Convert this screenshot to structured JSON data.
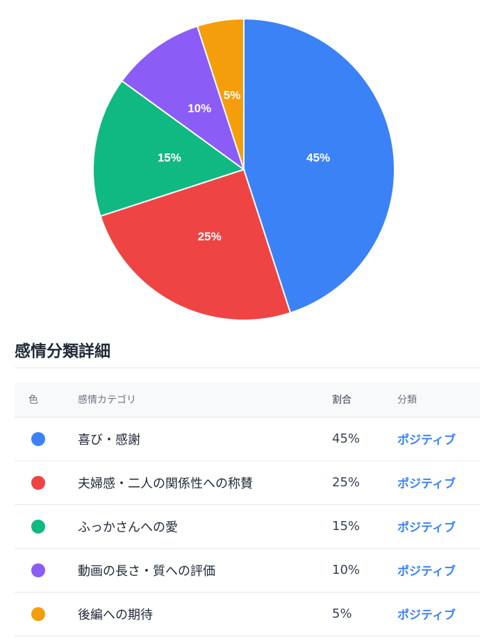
{
  "chart_data": {
    "type": "pie",
    "categories": [
      "喜び・感謝",
      "夫婦感・二人の関係性への称賛",
      "ふっかさんへの愛",
      "動画の長さ・質への評価",
      "後編への期待"
    ],
    "values": [
      45,
      25,
      15,
      10,
      5
    ],
    "labels": [
      "45%",
      "25%",
      "15%",
      "10%",
      "5%"
    ],
    "colors": [
      "#3b82f6",
      "#ef4444",
      "#10b981",
      "#8b5cf6",
      "#f59e0b"
    ],
    "start": "top",
    "direction": "clockwise"
  },
  "details": {
    "title": "感情分類詳細",
    "headers": {
      "color": "色",
      "category": "感情カテゴリ",
      "ratio": "割合",
      "classification": "分類"
    },
    "rows": [
      {
        "category": "喜び・感謝",
        "ratio": "45%",
        "classification": "ポジティブ",
        "color": "#3b82f6"
      },
      {
        "category": "夫婦感・二人の関係性への称賛",
        "ratio": "25%",
        "classification": "ポジティブ",
        "color": "#ef4444"
      },
      {
        "category": "ふっかさんへの愛",
        "ratio": "15%",
        "classification": "ポジティブ",
        "color": "#10b981"
      },
      {
        "category": "動画の長さ・質への評価",
        "ratio": "10%",
        "classification": "ポジティブ",
        "color": "#8b5cf6"
      },
      {
        "category": "後編への期待",
        "ratio": "5%",
        "classification": "ポジティブ",
        "color": "#f59e0b"
      }
    ]
  }
}
